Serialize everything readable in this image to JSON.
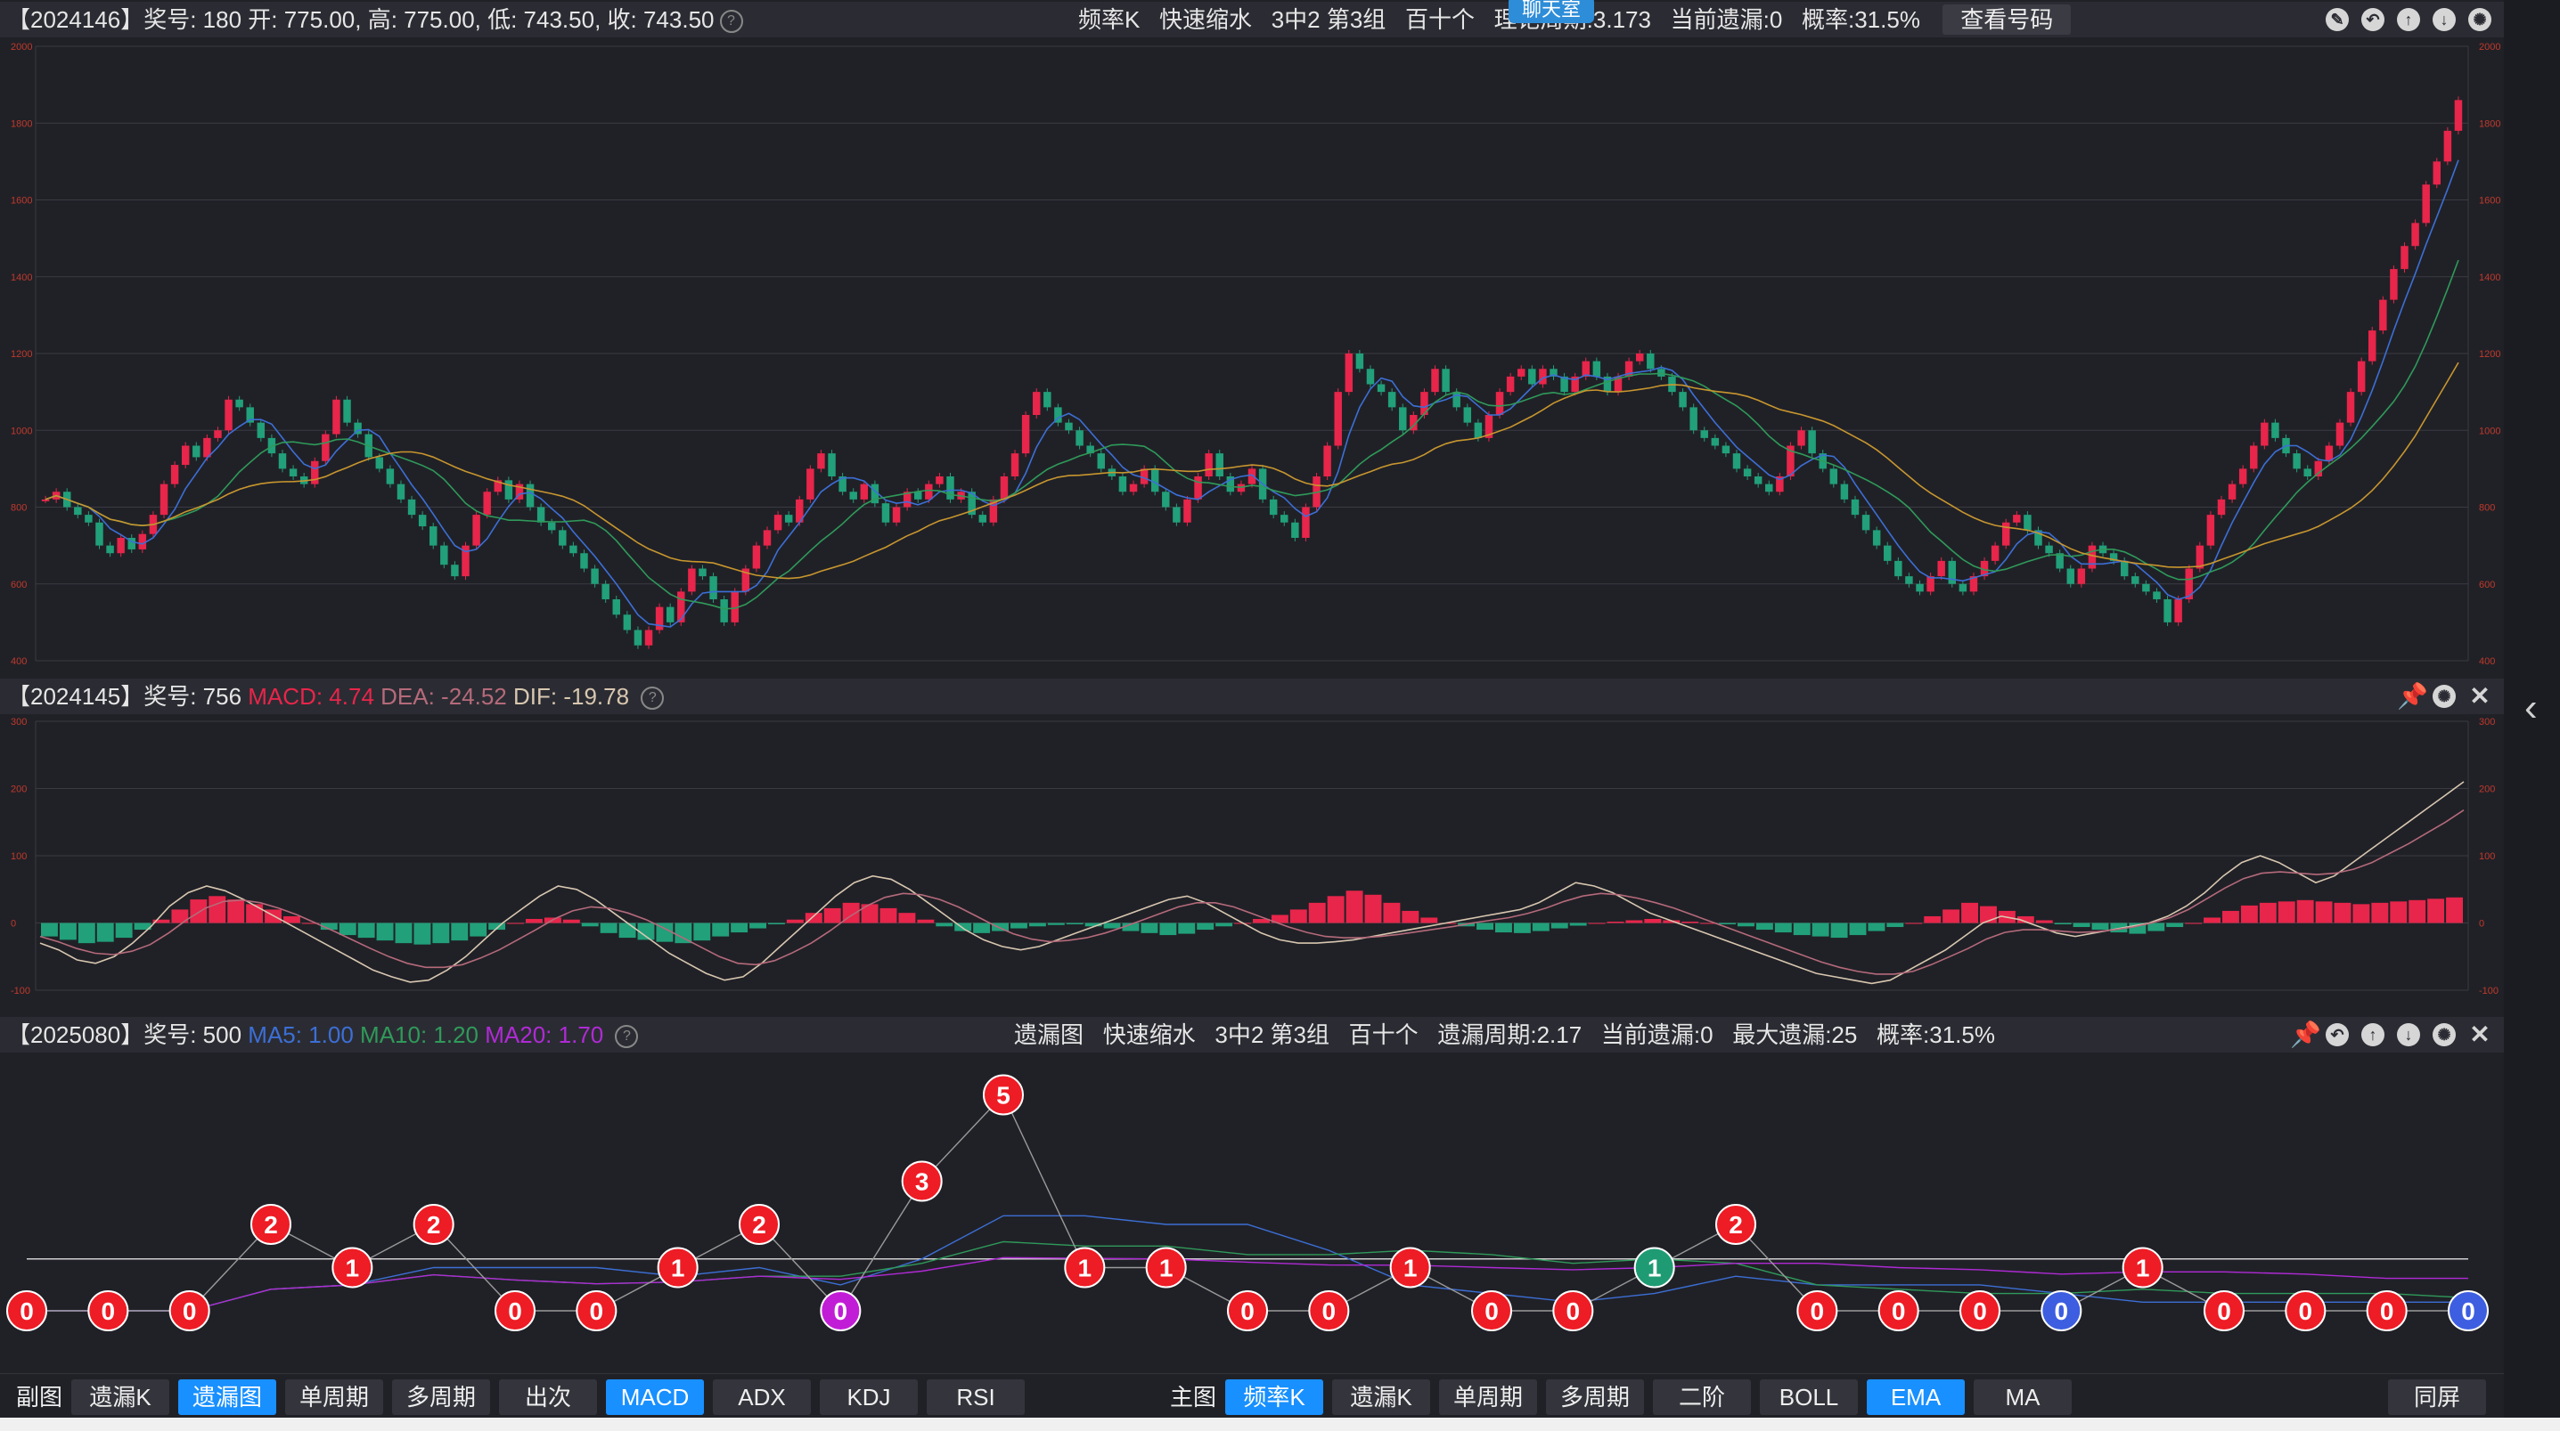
{
  "header1": {
    "left": "【2024146】奖号: 180  开: 775.00, 高: 775.00, 低: 743.50, 收: 743.50",
    "mid": [
      "频率K",
      "快速缩水",
      "3中2 第3组",
      "百十个",
      "理论周期:3.173",
      "当前遗漏:0",
      "概率:31.5%"
    ],
    "button": "查看号码",
    "chat": "聊天室"
  },
  "header2": {
    "prefix": "【2024145】奖号: 756",
    "macd": "MACD: 4.74",
    "dea": "DEA: -24.52",
    "dif": "DIF: -19.78"
  },
  "header3": {
    "prefix": "【2025080】奖号: 500",
    "ma5": "MA5: 1.00",
    "ma10": "MA10: 1.20",
    "ma20": "MA20: 1.70",
    "mid": [
      "遗漏图",
      "快速缩水",
      "3中2 第3组",
      "百十个",
      "遗漏周期:2.17",
      "当前遗漏:0",
      "最大遗漏:25",
      "概率:31.5%"
    ]
  },
  "axis1": {
    "ticks": [
      "2000",
      "1800",
      "1600",
      "1400",
      "1200",
      "1000",
      "800",
      "600",
      "400"
    ],
    "min": 400,
    "max": 2000
  },
  "axis2": {
    "ticks": [
      "300",
      "200",
      "100",
      "0",
      "-100"
    ],
    "min": -100,
    "max": 300
  },
  "colors": {
    "up": "#e8254a",
    "down": "#21a07a",
    "ma_blue": "#3c6fd6",
    "ma_green": "#2f9a5a",
    "ma_orange": "#c8962e",
    "accent": "#1890ff",
    "dif": "#d8c7b0",
    "dea": "#b56a7a"
  },
  "chart_data": [
    {
      "type": "candlestick",
      "close": [
        820,
        840,
        800,
        780,
        760,
        700,
        680,
        720,
        690,
        730,
        780,
        860,
        910,
        960,
        930,
        980,
        1000,
        1080,
        1060,
        1020,
        980,
        940,
        900,
        880,
        860,
        920,
        990,
        1080,
        1020,
        990,
        930,
        900,
        860,
        820,
        780,
        750,
        700,
        650,
        620,
        700,
        780,
        840,
        870,
        820,
        860,
        800,
        760,
        740,
        700,
        680,
        640,
        600,
        560,
        520,
        480,
        440,
        480,
        540,
        500,
        580,
        640,
        620,
        560,
        500,
        580,
        640,
        700,
        740,
        780,
        760,
        820,
        900,
        940,
        880,
        840,
        820,
        860,
        810,
        760,
        800,
        840,
        820,
        860,
        880,
        820,
        840,
        780,
        760,
        820,
        880,
        940,
        1040,
        1100,
        1060,
        1020,
        1000,
        960,
        940,
        900,
        880,
        840,
        860,
        900,
        840,
        800,
        760,
        820,
        880,
        940,
        880,
        840,
        860,
        900,
        820,
        780,
        760,
        720,
        800,
        880,
        960,
        1100,
        1200,
        1160,
        1120,
        1100,
        1060,
        1000,
        1040,
        1100,
        1160,
        1100,
        1060,
        1020,
        980,
        1040,
        1100,
        1140,
        1160,
        1120,
        1160,
        1140,
        1100,
        1140,
        1180,
        1140,
        1100,
        1140,
        1180,
        1200,
        1160,
        1140,
        1100,
        1060,
        1000,
        980,
        960,
        940,
        900,
        880,
        860,
        840,
        880,
        960,
        1000,
        940,
        900,
        860,
        820,
        780,
        740,
        700,
        660,
        620,
        600,
        580,
        620,
        660,
        600,
        580,
        620,
        660,
        700,
        760,
        780,
        740,
        700,
        680,
        640,
        600,
        640,
        700,
        680,
        660,
        620,
        600,
        580,
        560,
        500,
        560,
        640,
        700,
        780,
        820,
        860,
        900,
        960,
        1020,
        980,
        940,
        900,
        880,
        920,
        960,
        1020,
        1100,
        1180,
        1260,
        1340,
        1420,
        1480,
        1540,
        1640,
        1700,
        1780,
        1860
      ]
    },
    {
      "type": "line",
      "series": [
        {
          "name": "MACD",
          "values": [
            -20,
            -25,
            -30,
            -28,
            -22,
            -10,
            5,
            20,
            35,
            40,
            35,
            28,
            20,
            10,
            0,
            -10,
            -18,
            -22,
            -26,
            -30,
            -32,
            -30,
            -26,
            -20,
            -10,
            0,
            6,
            8,
            5,
            -5,
            -15,
            -22,
            -25,
            -28,
            -30,
            -26,
            -20,
            -14,
            -8,
            -2,
            5,
            15,
            22,
            30,
            28,
            22,
            15,
            5,
            -5,
            -12,
            -15,
            -12,
            -8,
            -5,
            -3,
            -2,
            -5,
            -8,
            -12,
            -15,
            -18,
            -16,
            -10,
            -5,
            0,
            6,
            12,
            20,
            30,
            40,
            48,
            42,
            30,
            18,
            8,
            0,
            -5,
            -10,
            -14,
            -15,
            -12,
            -8,
            -4,
            0,
            2,
            4,
            6,
            4,
            2,
            0,
            -2,
            -5,
            -10,
            -14,
            -18,
            -20,
            -22,
            -18,
            -12,
            -6,
            0,
            10,
            20,
            30,
            25,
            18,
            10,
            4,
            -2,
            -6,
            -10,
            -14,
            -16,
            -12,
            -6,
            0,
            8,
            18,
            26,
            30,
            32,
            34,
            32,
            30,
            28,
            30,
            32,
            34,
            36,
            38
          ]
        },
        {
          "name": "DIF",
          "values": [
            -30,
            -40,
            -55,
            -60,
            -50,
            -30,
            -5,
            25,
            45,
            55,
            48,
            35,
            20,
            5,
            -10,
            -25,
            -40,
            -55,
            -70,
            -80,
            -88,
            -85,
            -70,
            -50,
            -25,
            0,
            20,
            40,
            55,
            50,
            35,
            15,
            -5,
            -25,
            -45,
            -60,
            -75,
            -85,
            -80,
            -60,
            -35,
            -10,
            15,
            40,
            60,
            70,
            65,
            50,
            30,
            10,
            -10,
            -25,
            -35,
            -40,
            -35,
            -25,
            -15,
            -5,
            5,
            15,
            25,
            35,
            40,
            30,
            15,
            0,
            -15,
            -25,
            -30,
            -30,
            -28,
            -25,
            -20,
            -15,
            -10,
            -5,
            0,
            5,
            10,
            15,
            20,
            30,
            45,
            60,
            55,
            45,
            30,
            15,
            5,
            -5,
            -15,
            -25,
            -35,
            -45,
            -55,
            -65,
            -75,
            -80,
            -85,
            -90,
            -85,
            -70,
            -55,
            -40,
            -20,
            0,
            10,
            5,
            -5,
            -15,
            -20,
            -15,
            -10,
            -5,
            0,
            10,
            25,
            45,
            70,
            90,
            100,
            90,
            75,
            60,
            70,
            90,
            110,
            130,
            150,
            170,
            190,
            210
          ]
        },
        {
          "name": "DEA",
          "values": [
            -20,
            -28,
            -38,
            -45,
            -47,
            -42,
            -32,
            -15,
            5,
            22,
            32,
            34,
            30,
            22,
            12,
            0,
            -12,
            -25,
            -38,
            -50,
            -60,
            -66,
            -66,
            -62,
            -52,
            -40,
            -25,
            -10,
            6,
            18,
            24,
            22,
            15,
            5,
            -8,
            -22,
            -36,
            -50,
            -60,
            -62,
            -56,
            -44,
            -30,
            -12,
            8,
            25,
            38,
            44,
            42,
            35,
            24,
            10,
            -4,
            -16,
            -24,
            -28,
            -26,
            -22,
            -15,
            -6,
            4,
            14,
            24,
            30,
            30,
            24,
            14,
            4,
            -6,
            -14,
            -20,
            -22,
            -22,
            -20,
            -17,
            -13,
            -9,
            -5,
            0,
            4,
            8,
            14,
            22,
            32,
            40,
            44,
            42,
            37,
            30,
            22,
            12,
            2,
            -8,
            -18,
            -28,
            -38,
            -48,
            -58,
            -66,
            -72,
            -76,
            -76,
            -72,
            -62,
            -50,
            -38,
            -24,
            -14,
            -10,
            -10,
            -12,
            -14,
            -13,
            -10,
            -6,
            0,
            8,
            20,
            36,
            52,
            66,
            74,
            76,
            74,
            72,
            74,
            80,
            90,
            104,
            118,
            134,
            150,
            168
          ]
        }
      ],
      "ylim": [
        -100,
        300
      ]
    },
    {
      "type": "line",
      "points": [
        0,
        0,
        0,
        2,
        1,
        2,
        0,
        0,
        1,
        2,
        0,
        3,
        5,
        1,
        1,
        0,
        0,
        1,
        0,
        0,
        1,
        2,
        0,
        0,
        0,
        0,
        1,
        0,
        0,
        0,
        0
      ],
      "colors": [
        "red",
        "red",
        "red",
        "red",
        "red",
        "red",
        "red",
        "red",
        "red",
        "red",
        "purple",
        "red",
        "red",
        "red",
        "red",
        "red",
        "red",
        "red",
        "red",
        "red",
        "green",
        "red",
        "red",
        "red",
        "red",
        "blue",
        "red",
        "red",
        "red",
        "red",
        "blue"
      ],
      "baseline": 1.2
    }
  ],
  "bottom": {
    "sub_label": "副图",
    "sub_buttons": [
      {
        "label": "遗漏K",
        "active": false
      },
      {
        "label": "遗漏图",
        "active": true
      },
      {
        "label": "单周期",
        "active": false
      },
      {
        "label": "多周期",
        "active": false
      },
      {
        "label": "出次",
        "active": false
      },
      {
        "label": "MACD",
        "active": true
      },
      {
        "label": "ADX",
        "active": false
      },
      {
        "label": "KDJ",
        "active": false
      },
      {
        "label": "RSI",
        "active": false
      }
    ],
    "main_label": "主图",
    "main_buttons": [
      {
        "label": "频率K",
        "active": true
      },
      {
        "label": "遗漏K",
        "active": false
      },
      {
        "label": "单周期",
        "active": false
      },
      {
        "label": "多周期",
        "active": false
      },
      {
        "label": "二阶",
        "active": false
      },
      {
        "label": "BOLL",
        "active": false
      },
      {
        "label": "EMA",
        "active": true
      },
      {
        "label": "MA",
        "active": false
      }
    ],
    "same_screen": "同屏"
  }
}
